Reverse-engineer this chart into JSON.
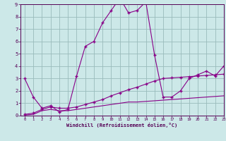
{
  "xlabel": "Windchill (Refroidissement éolien,°C)",
  "line1_x": [
    0,
    1,
    2,
    3,
    4,
    5,
    6,
    7,
    8,
    9,
    10,
    11,
    12,
    13,
    14,
    15,
    16,
    17,
    18,
    19,
    20,
    21,
    22,
    23
  ],
  "line1_y": [
    3.0,
    1.5,
    0.6,
    0.8,
    0.3,
    0.5,
    3.2,
    5.6,
    6.0,
    7.5,
    8.5,
    9.5,
    8.3,
    8.5,
    9.2,
    4.9,
    1.5,
    1.5,
    2.0,
    3.0,
    3.3,
    3.6,
    3.2,
    4.0
  ],
  "line2_x": [
    0,
    1,
    2,
    3,
    4,
    5,
    6,
    7,
    8,
    9,
    10,
    11,
    12,
    13,
    14,
    15,
    16,
    17,
    18,
    19,
    20,
    21,
    22,
    23
  ],
  "line2_y": [
    0.1,
    0.2,
    0.5,
    0.7,
    0.6,
    0.6,
    0.7,
    0.9,
    1.1,
    1.3,
    1.6,
    1.85,
    2.1,
    2.3,
    2.55,
    2.8,
    3.0,
    3.05,
    3.1,
    3.15,
    3.2,
    3.25,
    3.3,
    3.35
  ],
  "line3_x": [
    0,
    1,
    2,
    3,
    4,
    5,
    6,
    7,
    8,
    9,
    10,
    11,
    12,
    13,
    14,
    15,
    16,
    17,
    18,
    19,
    20,
    21,
    22,
    23
  ],
  "line3_y": [
    0.05,
    0.1,
    0.4,
    0.5,
    0.4,
    0.4,
    0.5,
    0.6,
    0.7,
    0.8,
    0.9,
    1.0,
    1.1,
    1.1,
    1.15,
    1.2,
    1.25,
    1.3,
    1.35,
    1.4,
    1.45,
    1.5,
    1.55,
    1.6
  ],
  "line_color": "#880088",
  "bg_color": "#cce8e8",
  "grid_color": "#99bbbb",
  "ylim": [
    0,
    9
  ],
  "xlim": [
    -0.5,
    23
  ],
  "yticks": [
    0,
    1,
    2,
    3,
    4,
    5,
    6,
    7,
    8,
    9
  ],
  "xticks": [
    0,
    1,
    2,
    3,
    4,
    5,
    6,
    7,
    8,
    9,
    10,
    11,
    12,
    13,
    14,
    15,
    16,
    17,
    18,
    19,
    20,
    21,
    22,
    23
  ],
  "marker": "+"
}
